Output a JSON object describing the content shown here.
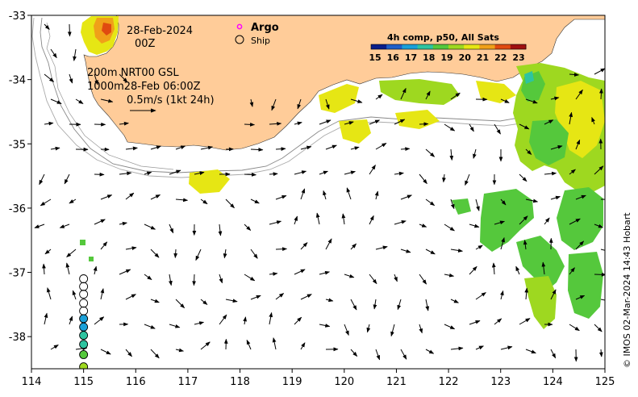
{
  "map": {
    "date_line1": "28-Feb-2024",
    "date_line2": "00Z",
    "contour_line1": "200m  NRT00 GSL",
    "contour_line2": "1000m28-Feb 06:00Z",
    "scale_label": "0.5m/s (1kt 24h)",
    "legend_argo": "Argo",
    "legend_ship": "Ship",
    "colorbar_title": "4h comp, p50, All Sats",
    "colorbar_ticks": [
      "15",
      "16",
      "17",
      "18",
      "19",
      "20",
      "21",
      "22",
      "23"
    ],
    "credit": "© IMOS 02-Mar-2024 14:43 Hobart",
    "x_ticks": [
      "114",
      "115",
      "116",
      "117",
      "118",
      "119",
      "120",
      "121",
      "122",
      "123",
      "124",
      "125"
    ],
    "y_ticks": [
      "-33",
      "-34",
      "-35",
      "-36",
      "-37",
      "-38"
    ],
    "colors": {
      "land": "#ffcc99",
      "argo": "#ff00ff",
      "colormap": [
        "#0a1e8a",
        "#1f5fc8",
        "#1aa0d8",
        "#2ec4a0",
        "#55c83c",
        "#9ed820",
        "#e6e614",
        "#f0a019",
        "#e04a10",
        "#a01010"
      ]
    }
  },
  "chart_data": {
    "type": "map",
    "x_range": [
      114,
      125
    ],
    "y_range": [
      -38.5,
      -33
    ],
    "ship_track": {
      "lon": 115.0,
      "lat": [
        -37.1,
        -37.22,
        -37.34,
        -37.48,
        -37.6,
        -37.72,
        -37.85,
        -37.98,
        -38.12,
        -38.28,
        -38.47
      ],
      "values": [
        null,
        null,
        null,
        null,
        null,
        17.5,
        17.5,
        17.7,
        18.3,
        19.2,
        19.5
      ]
    }
  }
}
